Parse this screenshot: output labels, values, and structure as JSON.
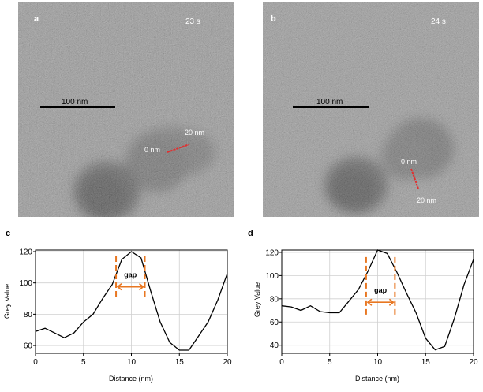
{
  "panels": {
    "a": {
      "letter": "a",
      "time": "23 s",
      "scale": "100 nm",
      "label_start": "0 nm",
      "label_end": "20 nm"
    },
    "b": {
      "letter": "b",
      "time": "24 s",
      "scale": "100 nm",
      "label_start": "0 nm",
      "label_end": "20 nm"
    }
  },
  "colors": {
    "profile_line": "#e03030",
    "gap_marker": "#e87722",
    "curve": "#000000",
    "grid": "#d0d0d0"
  },
  "chart_data": [
    {
      "id": "c",
      "letter": "c",
      "type": "line",
      "xlabel": "Distance (nm)",
      "ylabel": "Grey Value",
      "xlim": [
        0,
        20
      ],
      "ylim": [
        55,
        121
      ],
      "xticks": [
        0,
        5,
        10,
        15,
        20
      ],
      "yticks": [
        60,
        80,
        100,
        120
      ],
      "grid": true,
      "x": [
        0,
        1,
        2,
        3,
        4,
        5,
        6,
        7,
        8,
        9,
        10,
        11,
        12,
        13,
        14,
        15,
        16,
        17,
        18,
        19,
        20
      ],
      "y": [
        69,
        71,
        68,
        65,
        68,
        75,
        80,
        90,
        99,
        115,
        120,
        116,
        95,
        75,
        62,
        57,
        57,
        66,
        75,
        89,
        106
      ],
      "gap_label": "gap",
      "gap_range": [
        8.4,
        11.4
      ],
      "gap_marker_span": [
        91,
        117
      ]
    },
    {
      "id": "d",
      "letter": "d",
      "type": "line",
      "xlabel": "Distance (nm)",
      "ylabel": "Grey Value",
      "xlim": [
        0,
        20
      ],
      "ylim": [
        33,
        122
      ],
      "xticks": [
        0,
        5,
        10,
        15,
        20
      ],
      "yticks": [
        40,
        60,
        80,
        100,
        120
      ],
      "grid": true,
      "x": [
        0,
        1,
        2,
        3,
        4,
        5,
        6,
        7,
        8,
        9,
        10,
        11,
        12,
        13,
        14,
        15,
        16,
        17,
        18,
        19,
        20
      ],
      "y": [
        74,
        73,
        70,
        74,
        69,
        68,
        68,
        78,
        88,
        104,
        122,
        119,
        103,
        85,
        68,
        46,
        36,
        39,
        63,
        92,
        114
      ],
      "gap_label": "gap",
      "gap_range": [
        8.8,
        11.8
      ],
      "gap_marker_span": [
        64,
        116
      ]
    }
  ]
}
